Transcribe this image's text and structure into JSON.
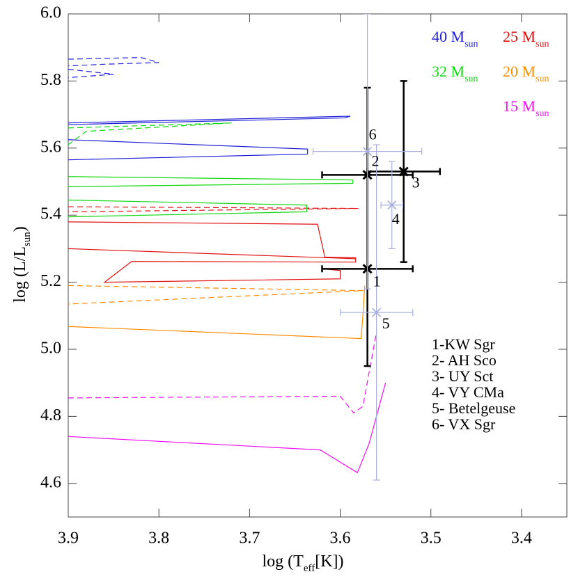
{
  "chart_data": {
    "type": "hr-diagram",
    "xlabel": [
      "log (T",
      "eff",
      "[K])"
    ],
    "ylabel": [
      "log (L/L",
      "sun",
      ")"
    ],
    "xlim": [
      3.9,
      3.35
    ],
    "ylim": [
      4.5,
      6.0
    ],
    "xticks": [
      3.9,
      3.8,
      3.7,
      3.6,
      3.5,
      3.4
    ],
    "yticks": [
      {
        "value": 4.6,
        "label": "4.6"
      },
      {
        "value": 4.8,
        "label": "4.8"
      },
      {
        "value": 5,
        "label": "5.0"
      },
      {
        "value": 5.2,
        "label": "5.2"
      },
      {
        "value": 5.4,
        "label": "5.4"
      },
      {
        "value": 5.6,
        "label": "5.6"
      },
      {
        "value": 5.8,
        "label": "5.8"
      },
      {
        "value": 6,
        "label": "6.0"
      }
    ],
    "series": [
      {
        "name": "40 M",
        "subscript": "sun",
        "color": "#2020d8",
        "tracks": [
          {
            "style": "solid",
            "x": [
              3.9,
              3.589,
              3.595,
              3.9
            ],
            "y": [
              5.675,
              5.695,
              5.69,
              5.67
            ]
          },
          {
            "style": "solid",
            "x": [
              3.9,
              3.636,
              3.636,
              3.9
            ],
            "y": [
              5.625,
              5.597,
              5.582,
              5.565
            ]
          },
          {
            "style": "dashed",
            "x": [
              3.9,
              3.82,
              3.8,
              3.86,
              3.9
            ],
            "y": [
              5.865,
              5.87,
              5.855,
              5.85,
              5.845
            ]
          },
          {
            "style": "dashed",
            "x": [
              3.9,
              3.85,
              3.9
            ],
            "y": [
              5.835,
              5.82,
              5.81
            ]
          }
        ]
      },
      {
        "name": "25 M",
        "subscript": "sun",
        "color": "#e01010",
        "tracks": [
          {
            "style": "dashed",
            "x": [
              3.9,
              3.58,
              3.9
            ],
            "y": [
              5.425,
              5.42,
              5.41
            ]
          },
          {
            "style": "solid",
            "x": [
              3.9,
              3.625,
              3.617,
              3.583,
              3.583,
              3.83,
              3.86,
              3.6,
              3.6,
              3.62
            ],
            "y": [
              5.38,
              5.373,
              5.275,
              5.273,
              5.26,
              5.262,
              5.2,
              5.21,
              5.235,
              5.24
            ]
          },
          {
            "style": "solid",
            "x": [
              3.9,
              3.583
            ],
            "y": [
              5.3,
              5.27
            ]
          }
        ]
      },
      {
        "name": "32 M",
        "subscript": "sun",
        "color": "#10d810",
        "tracks": [
          {
            "style": "dashed",
            "x": [
              3.9,
              3.72,
              3.88,
              3.9
            ],
            "y": [
              5.66,
              5.675,
              5.65,
              5.61
            ]
          },
          {
            "style": "solid",
            "x": [
              3.9,
              3.586,
              3.586,
              3.9
            ],
            "y": [
              5.515,
              5.505,
              5.495,
              5.485
            ]
          },
          {
            "style": "solid",
            "x": [
              3.9,
              3.637,
              3.637,
              3.9
            ],
            "y": [
              5.445,
              5.43,
              5.41,
              5.395
            ]
          }
        ]
      },
      {
        "name": "20 M",
        "subscript": "sun",
        "color": "#ff8c00",
        "tracks": [
          {
            "style": "dashed",
            "x": [
              3.9,
              3.575,
              3.9
            ],
            "y": [
              5.19,
              5.175,
              5.135
            ]
          },
          {
            "style": "solid",
            "x": [
              3.9,
              3.577,
              3.575,
              3.573
            ],
            "y": [
              5.068,
              5.032,
              5.1,
              5.19
            ]
          }
        ]
      },
      {
        "name": "15 M",
        "subscript": "sun",
        "color": "#f010f0",
        "tracks": [
          {
            "style": "dashed",
            "x": [
              3.9,
              3.6,
              3.585,
              3.575,
              3.56
            ],
            "y": [
              4.855,
              4.86,
              4.81,
              4.83,
              5.05
            ]
          },
          {
            "style": "solid",
            "x": [
              3.9,
              3.622,
              3.581,
              3.568,
              3.55
            ],
            "y": [
              4.74,
              4.7,
              4.632,
              4.72,
              4.9
            ]
          }
        ]
      }
    ],
    "stars": [
      {
        "label": "1",
        "legend": "1-KW Sgr",
        "color": "#000000",
        "x": 3.57,
        "y": 5.24,
        "xerr": 0.05,
        "yerr": [
          0.29,
          0.54
        ]
      },
      {
        "label": "2",
        "legend": "2- AH Sco",
        "color": "#000000",
        "x": 3.57,
        "y": 5.52,
        "xerr": 0.05,
        "yerr": [
          0,
          0
        ]
      },
      {
        "label": "3",
        "legend": "3- UY Sct",
        "color": "#000000",
        "x": 3.53,
        "y": 5.53,
        "xerr": 0.04,
        "yerr": [
          0.27,
          0.27
        ]
      },
      {
        "label": "4",
        "legend": "4- VY CMa",
        "color": "#aab0dd",
        "x": 3.543,
        "y": 5.43,
        "xerr": 0.012,
        "yerr": [
          0.13,
          0.13
        ]
      },
      {
        "label": "5",
        "legend": "5- Betelgeuse",
        "color": "#aab0dd",
        "x": 3.56,
        "y": 5.11,
        "xerr": 0.04,
        "yerr": [
          0.5,
          0.5
        ]
      },
      {
        "label": "6",
        "legend": "6- VX Sgr",
        "color": "#aab0dd",
        "x": 3.57,
        "y": 5.59,
        "xerr": 0.06,
        "yerr": [
          0.41,
          0.41
        ]
      }
    ]
  }
}
